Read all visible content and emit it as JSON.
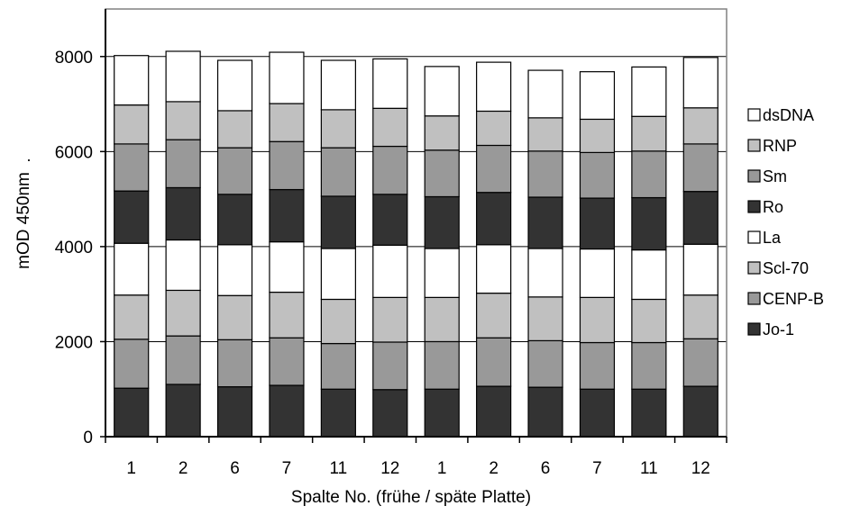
{
  "chart_data": {
    "type": "bar",
    "stacked": true,
    "xlabel": "Spalte No. (frühe / späte Platte)",
    "ylabel": "mOD 450nm",
    "ylabel_suffix": "·",
    "ylim": [
      0,
      9000
    ],
    "yticks": [
      0,
      2000,
      4000,
      6000,
      8000
    ],
    "grid": true,
    "legend_position": "right",
    "categories": [
      "1",
      "2",
      "6",
      "7",
      "11",
      "12",
      "1",
      "2",
      "6",
      "7",
      "11",
      "12"
    ],
    "series": [
      {
        "name": "Jo-1",
        "color": "#333333",
        "values": [
          1020,
          1100,
          1050,
          1080,
          1000,
          990,
          1000,
          1060,
          1040,
          1000,
          1000,
          1060
        ]
      },
      {
        "name": "CENP-B",
        "color": "#999999",
        "values": [
          1030,
          1020,
          990,
          1000,
          960,
          1000,
          1000,
          1020,
          980,
          980,
          980,
          1000
        ]
      },
      {
        "name": "Scl-70",
        "color": "#c0c0c0",
        "values": [
          930,
          960,
          930,
          960,
          930,
          940,
          930,
          940,
          920,
          950,
          910,
          920
        ]
      },
      {
        "name": "La",
        "color": "#ffffff",
        "values": [
          1090,
          1060,
          1070,
          1060,
          1070,
          1100,
          1030,
          1020,
          1020,
          1020,
          1040,
          1070
        ]
      },
      {
        "name": "Ro",
        "color": "#333333",
        "values": [
          1100,
          1100,
          1060,
          1100,
          1100,
          1070,
          1090,
          1100,
          1080,
          1070,
          1100,
          1110
        ]
      },
      {
        "name": "Sm",
        "color": "#999999",
        "values": [
          990,
          1010,
          980,
          1010,
          1020,
          1010,
          980,
          990,
          970,
          960,
          980,
          1000
        ]
      },
      {
        "name": "RNP",
        "color": "#c0c0c0",
        "values": [
          820,
          800,
          780,
          800,
          800,
          800,
          720,
          720,
          700,
          700,
          730,
          760
        ]
      },
      {
        "name": "dsDNA",
        "color": "#ffffff",
        "values": [
          1040,
          1060,
          1060,
          1080,
          1040,
          1040,
          1040,
          1030,
          1000,
          1000,
          1040,
          1060
        ]
      }
    ],
    "legend_order": [
      "dsDNA",
      "RNP",
      "Sm",
      "Ro",
      "La",
      "Scl-70",
      "CENP-B",
      "Jo-1"
    ]
  }
}
